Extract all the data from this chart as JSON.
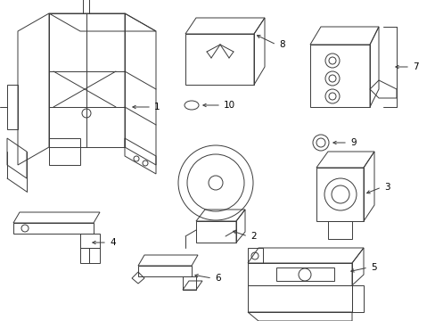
{
  "background_color": "#ffffff",
  "line_color": "#3a3a3a",
  "text_color": "#000000",
  "label_fontsize": 7.5,
  "figsize": [
    4.89,
    3.6
  ],
  "dpi": 100,
  "xlim": [
    0,
    489
  ],
  "ylim": [
    0,
    360
  ]
}
